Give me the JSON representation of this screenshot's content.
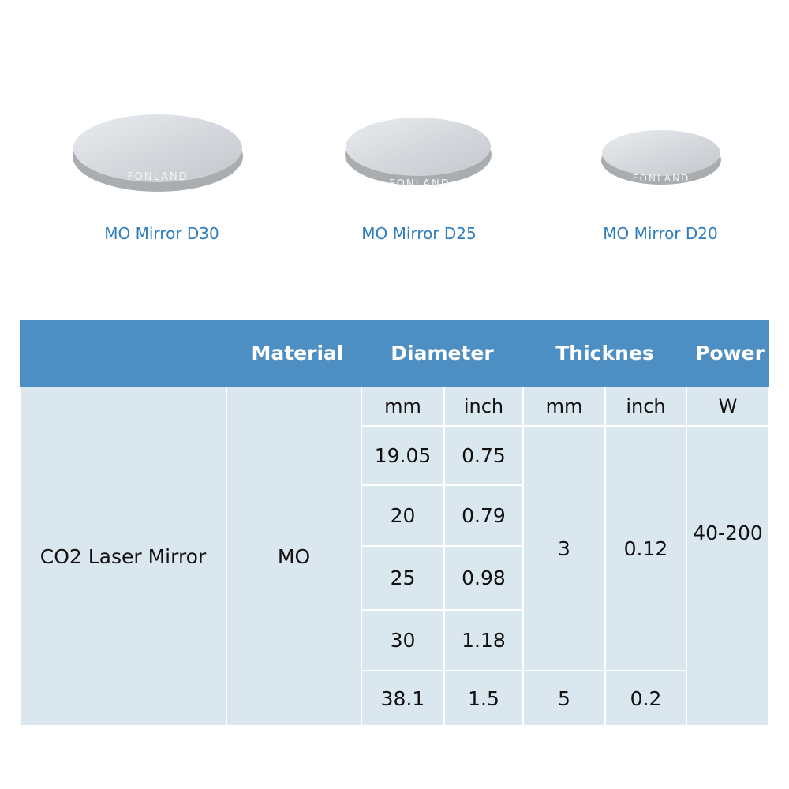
{
  "products": [
    {
      "label": "MO Mirror D30",
      "watermark": "FONLAND"
    },
    {
      "label": "MO Mirror D25",
      "watermark": "FONLAND"
    },
    {
      "label": "MO Mirror D20",
      "watermark": "FONLAND"
    }
  ],
  "table": {
    "header": [
      "Material",
      "Diameter",
      "Thicknes",
      "Power"
    ],
    "subheader": [
      "mm",
      "inch",
      "mm",
      "inch",
      "W"
    ],
    "product": "CO2 Laser Mirror",
    "material": "MO",
    "diameters": [
      [
        "19.05",
        "0.75"
      ],
      [
        "20",
        "0.79"
      ],
      [
        "25",
        "0.98"
      ],
      [
        "30",
        "1.18"
      ],
      [
        "38.1",
        "1.5"
      ]
    ],
    "thickness": [
      [
        "3",
        "0.12"
      ],
      [
        "5",
        "0.2"
      ]
    ],
    "power": "40-200"
  }
}
